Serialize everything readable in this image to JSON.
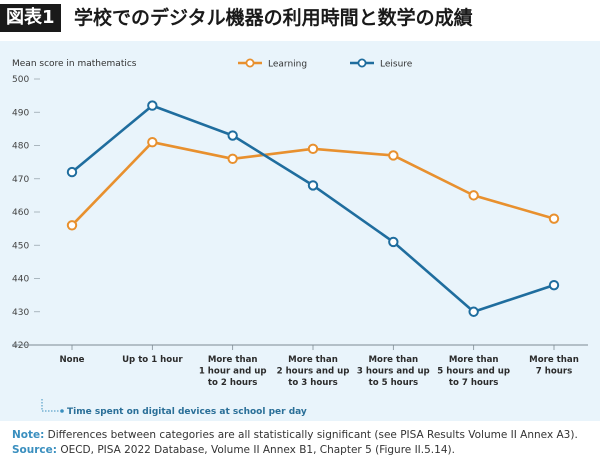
{
  "header": {
    "badge": "図表1",
    "title": "学校でのデジタル機器の利用時間と数学の成績"
  },
  "chart_data": {
    "type": "line",
    "ylabel": "Mean score in mathematics",
    "xlabel": "Time spent on digital devices at school per day",
    "ylim": [
      420,
      500
    ],
    "yticks": [
      420,
      430,
      440,
      450,
      460,
      470,
      480,
      490,
      500
    ],
    "categories": [
      [
        "None"
      ],
      [
        "Up to 1 hour"
      ],
      [
        "More than",
        "1 hour and up",
        "to 2 hours"
      ],
      [
        "More than",
        "2 hours and up",
        "to 3 hours"
      ],
      [
        "More than",
        "3 hours and up",
        "to 5 hours"
      ],
      [
        "More than",
        "5 hours and up",
        "to 7 hours"
      ],
      [
        "More than",
        "7 hours"
      ]
    ],
    "series": [
      {
        "name": "Learning",
        "color": "#e8902e",
        "values": [
          456,
          481,
          476,
          479,
          477,
          465,
          458
        ]
      },
      {
        "name": "Leisure",
        "color": "#1f6d9e",
        "values": [
          472,
          492,
          483,
          468,
          451,
          430,
          438
        ]
      }
    ],
    "legend_position": "top-center",
    "grid": false
  },
  "notes": {
    "note_label": "Note:",
    "note_text": " Differences between categories are all statistically significant (see PISA Results Volume II Annex A3).",
    "source_label": "Source:",
    "source_text": " OECD, PISA 2022 Database, Volume II Annex B1, Chapter 5 (Figure II.5.14)."
  }
}
